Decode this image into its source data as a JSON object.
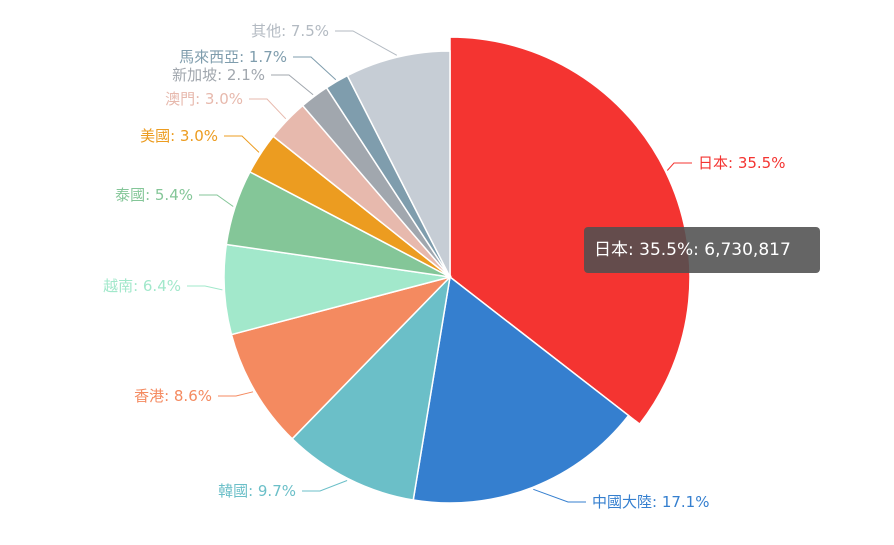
{
  "chart_data": {
    "type": "pie",
    "title": "",
    "slices": [
      {
        "label": "日本: 35.5%",
        "value": 35.5,
        "color": "#f43431"
      },
      {
        "label": "中國大陸: 17.1%",
        "value": 17.1,
        "color": "#357fcf"
      },
      {
        "label": "韓國: 9.7%",
        "value": 9.7,
        "color": "#6bbfc8"
      },
      {
        "label": "香港: 8.6%",
        "value": 8.6,
        "color": "#f48a60"
      },
      {
        "label": "越南: 6.4%",
        "value": 6.4,
        "color": "#a2e8cb"
      },
      {
        "label": "泰國: 5.4%",
        "value": 5.4,
        "color": "#84c698"
      },
      {
        "label": "美國: 3.0%",
        "value": 3.0,
        "color": "#ec9c20"
      },
      {
        "label": "澳門: 3.0%",
        "value": 3.0,
        "color": "#e7b9ad"
      },
      {
        "label": "新加坡: 2.1%",
        "value": 2.1,
        "color": "#a1a7ae"
      },
      {
        "label": "馬來西亞: 1.7%",
        "value": 1.7,
        "color": "#7f9dad"
      },
      {
        "label": "其他: 7.5%",
        "value": 7.5,
        "color": "#c6cdd5"
      }
    ],
    "highlighted_slice": "日本",
    "tooltip": "日本: 35.5%: 6,730,817"
  }
}
